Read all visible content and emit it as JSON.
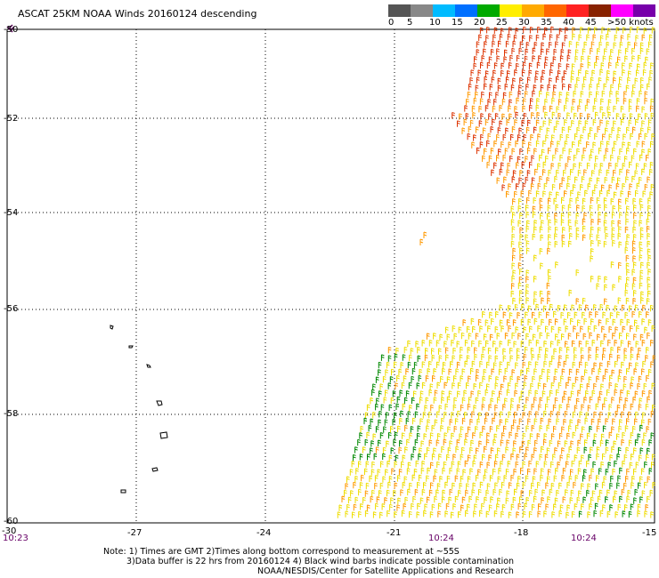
{
  "title": "ASCAT 25KM NOAA Winds 20160124 descending",
  "legend": {
    "colors": [
      "#555555",
      "#888888",
      "#00bbff",
      "#0070ff",
      "#00aa00",
      "#ffee00",
      "#ffaa00",
      "#ff6600",
      "#ff2222",
      "#882200",
      "#ff00ff",
      "#7700aa"
    ],
    "labels": [
      "0",
      "5",
      "10",
      "15",
      "20",
      "25",
      "30",
      "35",
      "40",
      "45",
      ">50 knots"
    ]
  },
  "map": {
    "lon_ticks": [
      "-27",
      "-24",
      "-21",
      "-18",
      "-15"
    ],
    "lon_start": "-30",
    "lat_ticks": [
      "-50",
      "-52",
      "-54",
      "-56",
      "-58",
      "-60"
    ],
    "time_labels": [
      "10:23",
      "10:24",
      "10:24"
    ],
    "colors": {
      "grid": "#000000",
      "barb_green": "#008800",
      "barb_yellow": "#eedd00",
      "barb_orange": "#ff9900",
      "barb_red": "#dd3300",
      "time_label": "#660066"
    }
  },
  "footer": {
    "line1": "Note: 1) Times are GMT 2)Times along bottom correspond to measurement at ~55S",
    "line2": "3)Data buffer is 22 hrs from 20160124 4) Black wind barbs indicate possible contamination",
    "line3": "NOAA/NESDIS/Center for Satellite Applications and Research"
  }
}
